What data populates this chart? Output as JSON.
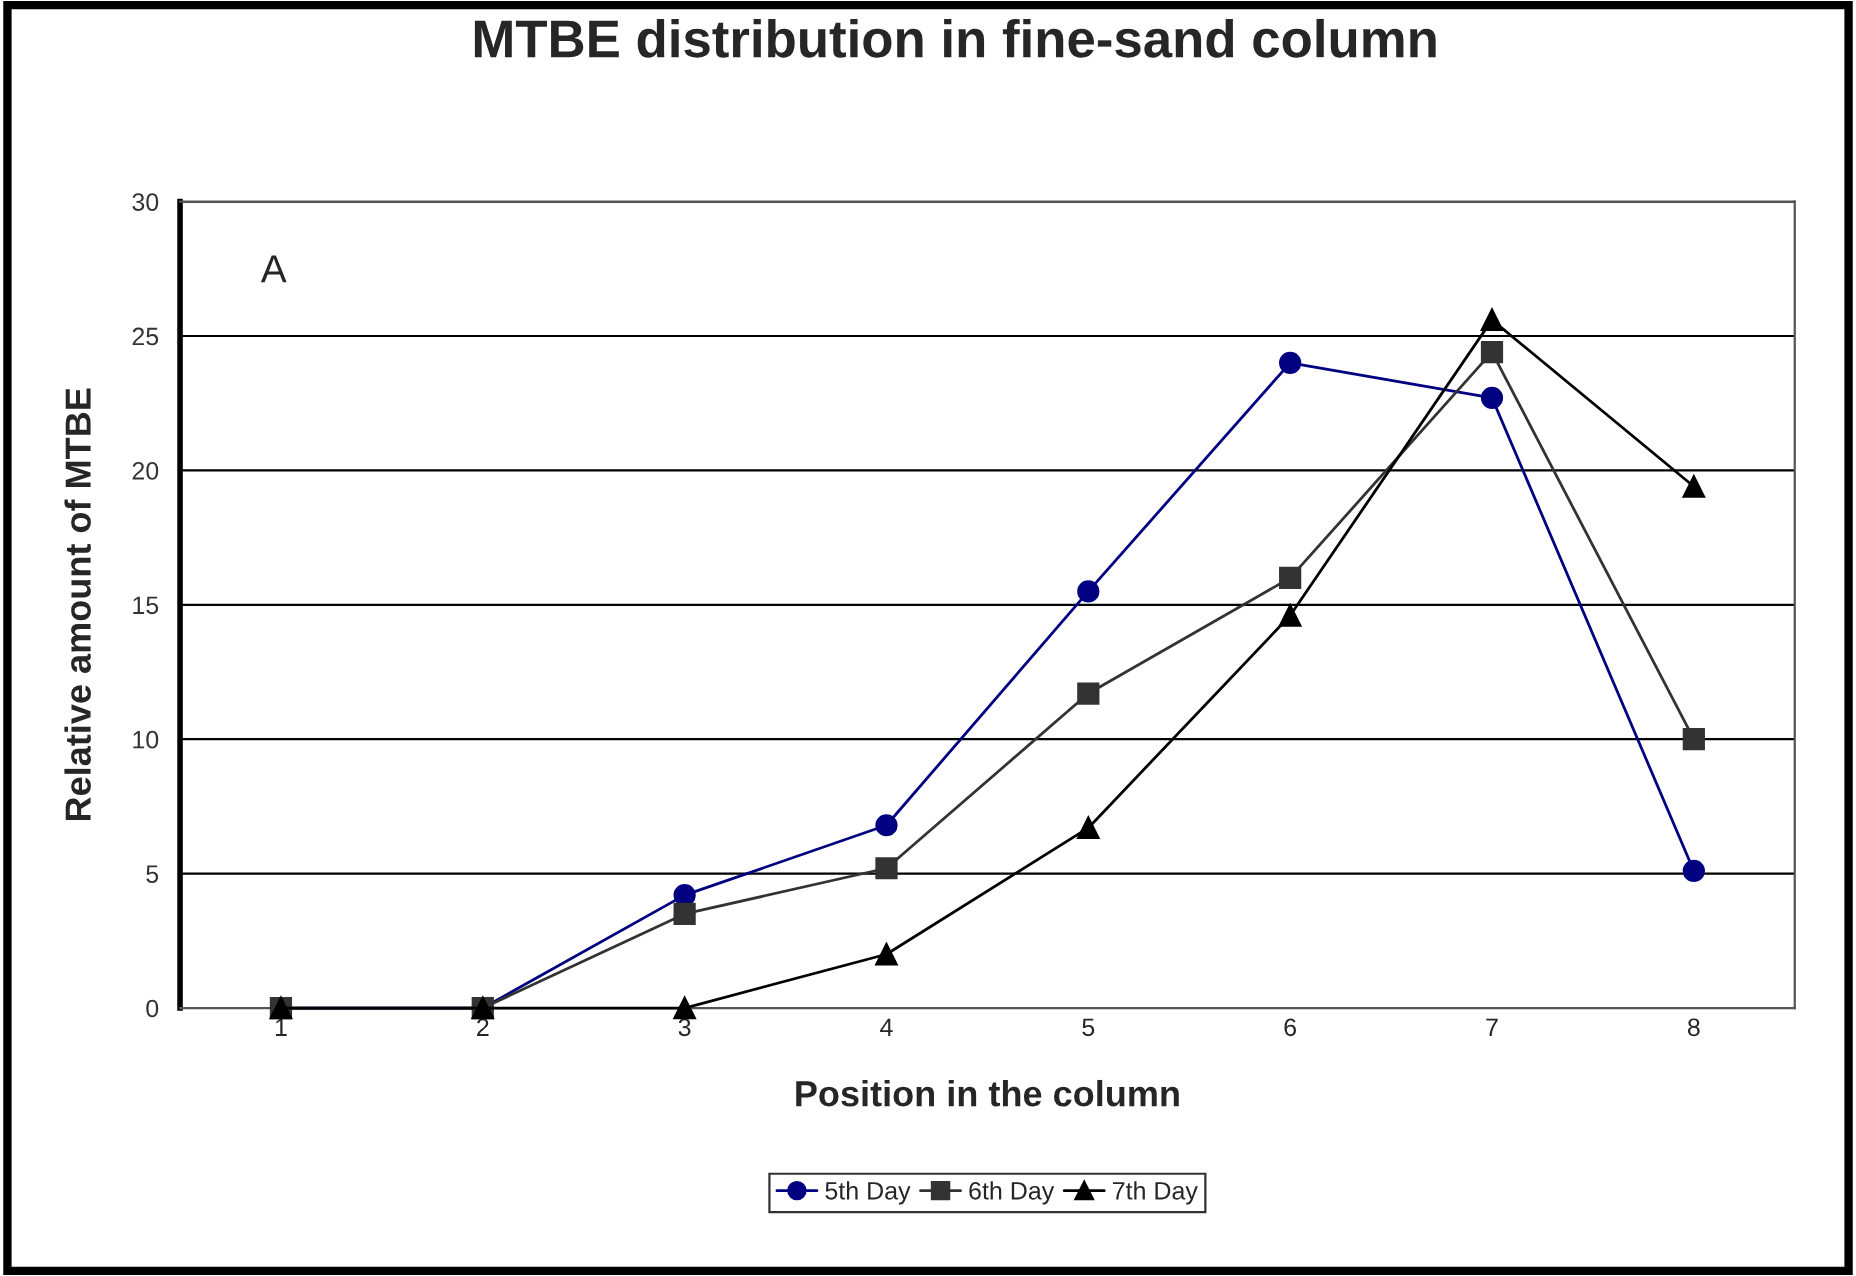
{
  "chart_data": {
    "type": "line",
    "title": "MTBE distribution in fine-sand column",
    "xlabel": "Position in the column",
    "ylabel": "Relative amount of MTBE",
    "annotations": [
      "A"
    ],
    "categories": [
      "1",
      "2",
      "3",
      "4",
      "5",
      "6",
      "7",
      "8"
    ],
    "series": [
      {
        "name": "5th Day",
        "color": "#000080",
        "marker": "circle",
        "values": [
          0,
          0,
          4.2,
          6.8,
          15.5,
          24.0,
          22.7,
          5.1
        ]
      },
      {
        "name": "6th Day",
        "color": "#333333",
        "marker": "square",
        "values": [
          0,
          0,
          3.5,
          5.2,
          11.7,
          16.0,
          24.4,
          10.0
        ]
      },
      {
        "name": "7th Day",
        "color": "#000000",
        "marker": "triangle",
        "values": [
          0,
          0,
          0,
          2.0,
          6.7,
          14.6,
          25.6,
          19.4
        ]
      }
    ],
    "ylim": [
      0,
      30
    ],
    "yticks": [
      0,
      5,
      10,
      15,
      20,
      25,
      30
    ],
    "grid": "y",
    "legend": "bottom",
    "line_style": "solid"
  }
}
